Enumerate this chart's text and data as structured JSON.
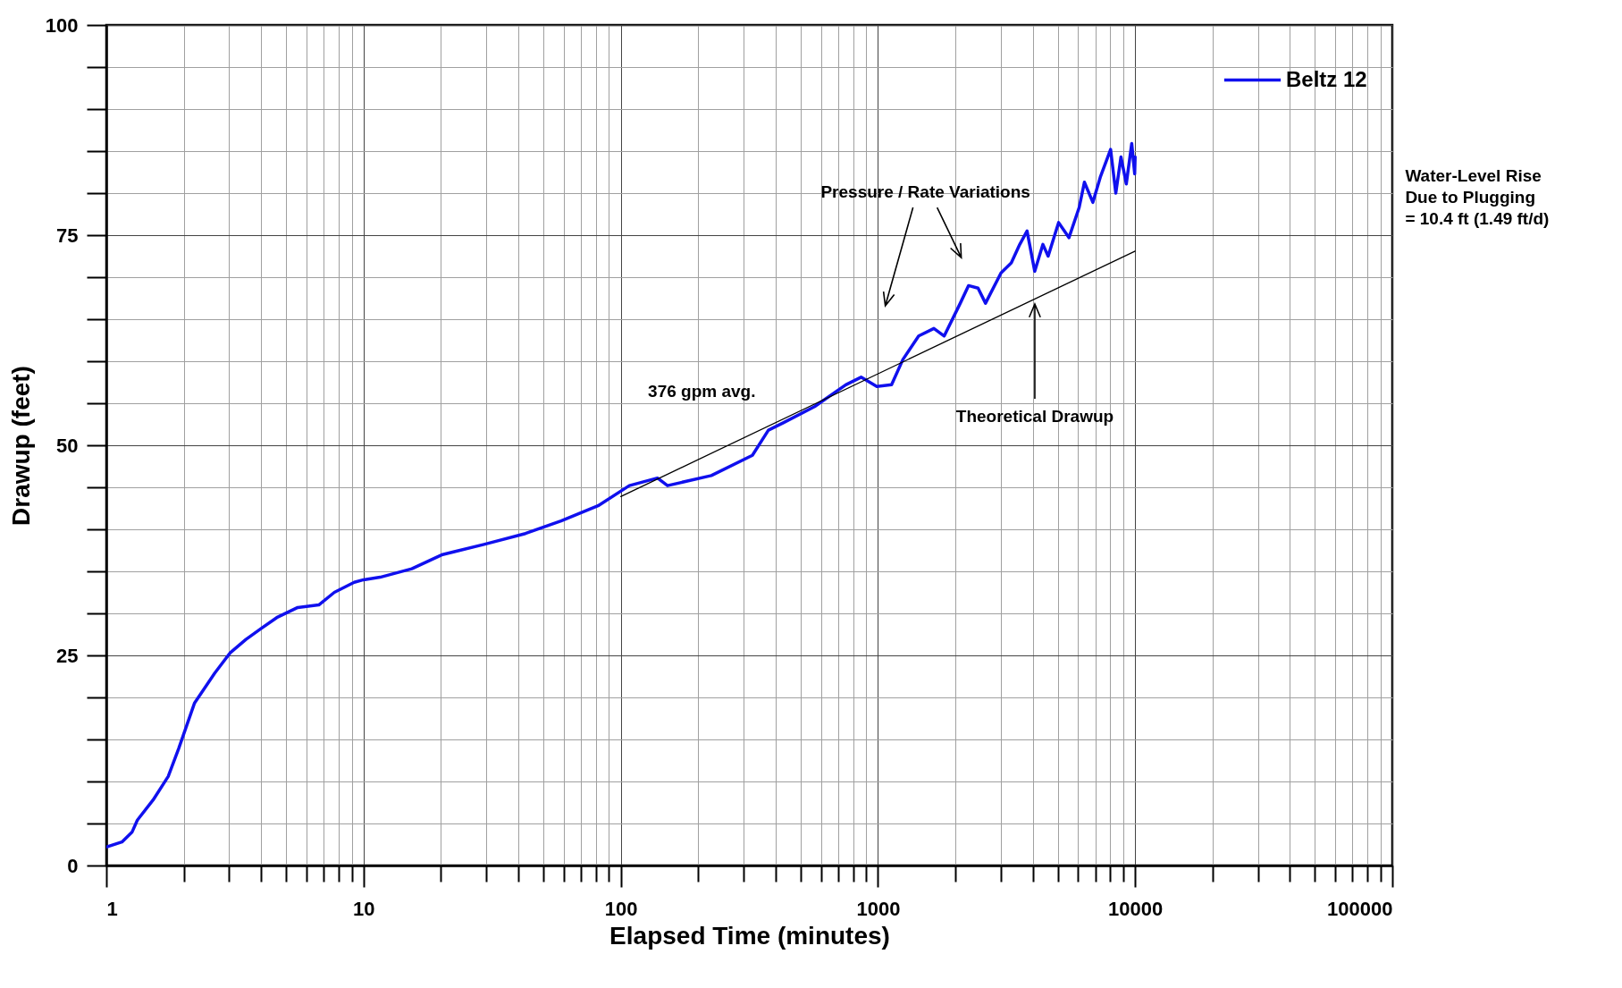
{
  "chart_data": {
    "type": "line",
    "xlabel": "Elapsed Time (minutes)",
    "ylabel": "Drawup (feet)",
    "log": "x",
    "grid": true,
    "legend": "top right",
    "line_style": "solid",
    "xlim": [
      1,
      100000
    ],
    "ylim": [
      0,
      100
    ],
    "xticks": [
      1,
      {
        "value": 2,
        "label": null
      },
      {
        "value": 3,
        "label": null
      },
      {
        "value": 4,
        "label": null
      },
      {
        "value": 5,
        "label": null
      },
      {
        "value": 6,
        "label": null
      },
      {
        "value": 7,
        "label": null
      },
      {
        "value": 8,
        "label": null
      },
      {
        "value": 9,
        "label": null
      },
      10,
      {
        "value": 20,
        "label": null
      },
      {
        "value": 30,
        "label": null
      },
      {
        "value": 40,
        "label": null
      },
      {
        "value": 50,
        "label": null
      },
      {
        "value": 60,
        "label": null
      },
      {
        "value": 70,
        "label": null
      },
      {
        "value": 80,
        "label": null
      },
      {
        "value": 90,
        "label": null
      },
      100,
      {
        "value": 200,
        "label": null
      },
      {
        "value": 300,
        "label": null
      },
      {
        "value": 400,
        "label": null
      },
      {
        "value": 500,
        "label": null
      },
      {
        "value": 600,
        "label": null
      },
      {
        "value": 700,
        "label": null
      },
      {
        "value": 800,
        "label": null
      },
      {
        "value": 900,
        "label": null
      },
      1000,
      {
        "value": 2000,
        "label": null
      },
      {
        "value": 3000,
        "label": null
      },
      {
        "value": 4000,
        "label": null
      },
      {
        "value": 5000,
        "label": null
      },
      {
        "value": 6000,
        "label": null
      },
      {
        "value": 7000,
        "label": null
      },
      {
        "value": 8000,
        "label": null
      },
      {
        "value": 9000,
        "label": null
      },
      10000,
      {
        "value": 20000,
        "label": null
      },
      {
        "value": 30000,
        "label": null
      },
      {
        "value": 40000,
        "label": null
      },
      {
        "value": 50000,
        "label": null
      },
      {
        "value": 60000,
        "label": null
      },
      {
        "value": 70000,
        "label": null
      },
      {
        "value": 80000,
        "label": null
      },
      {
        "value": 90000,
        "label": null
      },
      100000
    ],
    "yticks": [
      0,
      {
        "value": 5,
        "label": null
      },
      {
        "value": 10,
        "label": null
      },
      {
        "value": 15,
        "label": null
      },
      {
        "value": 20,
        "label": null
      },
      25,
      {
        "value": 30,
        "label": null
      },
      {
        "value": 35,
        "label": null
      },
      {
        "value": 40,
        "label": null
      },
      {
        "value": 45,
        "label": null
      },
      50,
      {
        "value": 55,
        "label": null
      },
      {
        "value": 60,
        "label": null
      },
      {
        "value": 65,
        "label": null
      },
      {
        "value": 70,
        "label": null
      },
      75,
      {
        "value": 80,
        "label": null
      },
      {
        "value": 85,
        "label": null
      },
      {
        "value": 90,
        "label": null
      },
      {
        "value": 95,
        "label": null
      },
      100
    ],
    "series": [
      {
        "name": "Beltz 12",
        "color": "#1010ee",
        "x": [
          1,
          1.15,
          1.26,
          1.32,
          1.52,
          1.74,
          1.91,
          2.2,
          2.64,
          3.03,
          3.49,
          4.0,
          4.6,
          5.55,
          6.7,
          7.7,
          9.2,
          10,
          11.6,
          15.4,
          20.3,
          29.4,
          42.6,
          58.6,
          81.6,
          108,
          139,
          152,
          225,
          325,
          375,
          430,
          567,
          750,
          860,
          990,
          1130,
          1250,
          1440,
          1650,
          1810,
          2090,
          2250,
          2450,
          2620,
          3010,
          3300,
          3560,
          3800,
          4070,
          4380,
          4590,
          5040,
          5530,
          6060,
          6350,
          6850,
          7320,
          8030,
          8410,
          8810,
          9240,
          9700,
          9960,
          10000
        ],
        "values": [
          2.2,
          2.8,
          4.0,
          5.4,
          7.8,
          10.6,
          13.9,
          19.3,
          22.9,
          25.3,
          26.9,
          28.2,
          29.5,
          30.7,
          31.0,
          32.5,
          33.7,
          34.0,
          34.3,
          35.3,
          37.0,
          38.2,
          39.5,
          41.0,
          42.8,
          45.2,
          46.1,
          45.2,
          46.4,
          48.8,
          51.8,
          52.7,
          54.6,
          57.2,
          58.1,
          57.0,
          57.2,
          60.2,
          63.0,
          63.9,
          63.0,
          66.9,
          69.0,
          68.7,
          66.9,
          70.5,
          71.7,
          73.9,
          75.5,
          70.7,
          73.9,
          72.5,
          76.5,
          74.7,
          78.3,
          81.3,
          78.9,
          81.9,
          85.2,
          80.0,
          84.3,
          81.1,
          85.9,
          82.3,
          84.3
        ]
      },
      {
        "color": "#000000",
        "x": [
          100,
          10000
        ],
        "values": [
          43.9,
          73.1
        ]
      }
    ],
    "annotations": [
      "Pressure / Rate Variations",
      "376 gpm avg.",
      "Theoretical Drawup",
      "Water-Level Rise\nDue to Plugging\n= 10.4 ft (1.49 ft/d)"
    ]
  }
}
